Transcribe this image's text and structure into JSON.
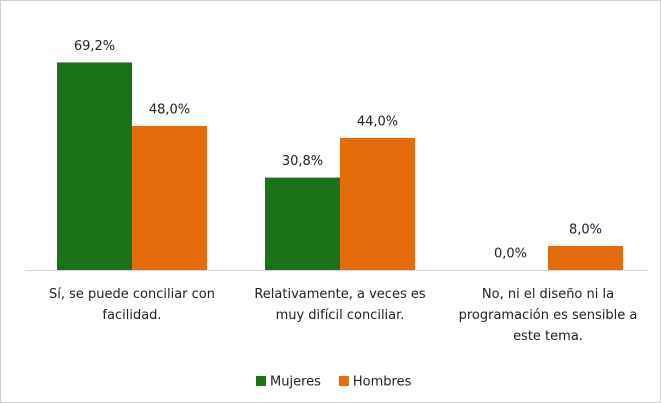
{
  "chart_data": {
    "type": "bar",
    "categories": [
      "Sí, se puede conciliar con facilidad.",
      "Relativamente, a veces es muy difícil conciliar.",
      "No, ni el diseño ni la programación es sensible a este tema."
    ],
    "series": [
      {
        "name": "Mujeres",
        "color": "#1a7417",
        "values": [
          69.2,
          30.8,
          0.0
        ],
        "value_labels": [
          "69,2%",
          "30,8%",
          "0,0%"
        ]
      },
      {
        "name": "Hombres",
        "color": "#e46c0a",
        "values": [
          48.0,
          44.0,
          8.0
        ],
        "value_labels": [
          "48,0%",
          "44,0%",
          "8,0%"
        ]
      }
    ]
  }
}
